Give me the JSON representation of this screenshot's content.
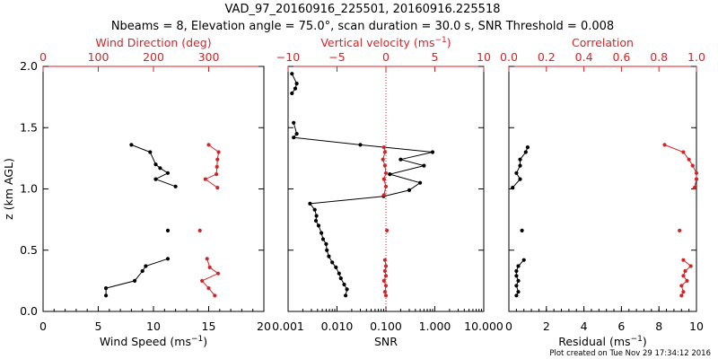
{
  "title_line1": "VAD_97_20160916_225501, 20160916.225518",
  "title_line2": "Nbeams = 8, Elevation angle = 75.0°, scan duration = 30.0 s, SNR Threshold = 0.008",
  "footer": "Plot created on Tue Nov 29 17:34:12 2016",
  "colors": {
    "primary": "#000000",
    "secondary": "#d0262a"
  },
  "y_axis": {
    "label": "z (km AGL)",
    "range": [
      0,
      2.0
    ],
    "ticks": [
      "0.0",
      "0.5",
      "1.0",
      "1.5",
      "2.0"
    ]
  },
  "chart_data": [
    {
      "type": "line",
      "name": "wind",
      "x_bottom": {
        "label": "Wind Speed (ms⁻¹)",
        "range": [
          0,
          20
        ],
        "ticks": [
          "0",
          "5",
          "10",
          "15",
          "20"
        ]
      },
      "x_top": {
        "label": "Wind Direction (deg)",
        "range": [
          0,
          400
        ],
        "ticks": [
          "0",
          "100",
          "200",
          "300"
        ]
      },
      "series": [
        {
          "name": "Wind Speed",
          "axis": "bottom",
          "color": "#000000",
          "segments": [
            [
              [
                8.0,
                1.36
              ],
              [
                9.7,
                1.3
              ],
              [
                10.2,
                1.2
              ],
              [
                10.6,
                1.17
              ],
              [
                11.3,
                1.13
              ],
              [
                10.2,
                1.08
              ],
              [
                12.0,
                1.02
              ]
            ],
            [
              [
                11.3,
                0.66
              ]
            ],
            [
              [
                11.3,
                0.43
              ],
              [
                9.3,
                0.37
              ],
              [
                9.0,
                0.33
              ],
              [
                8.3,
                0.25
              ],
              [
                5.7,
                0.19
              ],
              [
                5.7,
                0.13
              ]
            ]
          ]
        },
        {
          "name": "Wind Direction",
          "axis": "top",
          "color": "#d0262a",
          "segments": [
            [
              [
                300,
                1.36
              ],
              [
                318,
                1.3
              ],
              [
                316,
                1.24
              ],
              [
                315,
                1.18
              ],
              [
                314,
                1.12
              ],
              [
                294,
                1.08
              ],
              [
                316,
                1.01
              ]
            ],
            [
              [
                284,
                0.66
              ]
            ],
            [
              [
                297,
                0.43
              ],
              [
                302,
                0.36
              ],
              [
                317,
                0.31
              ],
              [
                288,
                0.25
              ],
              [
                300,
                0.19
              ],
              [
                311,
                0.13
              ]
            ]
          ]
        }
      ]
    },
    {
      "type": "line",
      "name": "snr",
      "x_bottom": {
        "label": "SNR",
        "scale": "log",
        "range": [
          0.001,
          10
        ],
        "ticks": [
          "0.001",
          "0.010",
          "0.100",
          "1.000",
          "10.000"
        ]
      },
      "x_top": {
        "label": "Vertical velocity (ms⁻¹)",
        "range": [
          -10,
          10
        ],
        "ticks": [
          "−10",
          "−5",
          "0",
          "5",
          "10"
        ]
      },
      "series": [
        {
          "name": "SNR",
          "axis": "bottom",
          "color": "#000000",
          "segments": [
            [
              [
                0.0012,
                1.94
              ],
              [
                0.0015,
                1.86
              ],
              [
                0.0014,
                1.82
              ],
              [
                0.0012,
                1.78
              ]
            ],
            [
              [
                0.0013,
                1.54
              ],
              [
                0.0015,
                1.45
              ],
              [
                0.0013,
                1.42
              ],
              [
                0.03,
                1.36
              ],
              [
                0.9,
                1.3
              ],
              [
                0.2,
                1.24
              ],
              [
                0.6,
                1.19
              ],
              [
                0.12,
                1.12
              ],
              [
                0.5,
                1.05
              ],
              [
                0.3,
                0.99
              ],
              [
                0.09,
                0.94
              ],
              [
                0.0028,
                0.88
              ],
              [
                0.0035,
                0.83
              ],
              [
                0.0038,
                0.78
              ],
              [
                0.0037,
                0.74
              ],
              [
                0.0042,
                0.7
              ],
              [
                0.0048,
                0.64
              ],
              [
                0.0052,
                0.59
              ],
              [
                0.006,
                0.55
              ],
              [
                0.0062,
                0.5
              ],
              [
                0.0068,
                0.45
              ],
              [
                0.008,
                0.4
              ],
              [
                0.0095,
                0.36
              ],
              [
                0.011,
                0.31
              ],
              [
                0.012,
                0.27
              ],
              [
                0.014,
                0.22
              ],
              [
                0.016,
                0.18
              ],
              [
                0.015,
                0.13
              ]
            ]
          ]
        },
        {
          "name": "Vertical velocity",
          "axis": "top",
          "color": "#d0262a",
          "segments": [
            [
              [
                -0.2,
                1.34
              ],
              [
                -0.1,
                1.3
              ],
              [
                -0.3,
                1.24
              ],
              [
                -0.1,
                1.19
              ],
              [
                0,
                1.13
              ],
              [
                -0.2,
                1.08
              ],
              [
                0,
                1.02
              ],
              [
                -0.2,
                0.95
              ]
            ],
            [
              [
                0.1,
                0.66
              ]
            ],
            [
              [
                -0.1,
                0.42
              ],
              [
                0,
                0.37
              ],
              [
                -0.1,
                0.33
              ],
              [
                0,
                0.29
              ],
              [
                -0.2,
                0.25
              ],
              [
                0,
                0.21
              ],
              [
                -0.1,
                0.16
              ],
              [
                0,
                0.13
              ]
            ]
          ]
        }
      ],
      "reference_line": {
        "x": 0.1,
        "style": "dotted"
      }
    },
    {
      "type": "line",
      "name": "residual",
      "x_bottom": {
        "label": "Residual (ms⁻¹)",
        "range": [
          0,
          10
        ],
        "ticks": [
          "0",
          "2",
          "4",
          "6",
          "8",
          "10"
        ]
      },
      "x_top": {
        "label": "Correlation",
        "range": [
          0,
          1.0
        ],
        "ticks": [
          "0.0",
          "0.2",
          "0.4",
          "0.6",
          "0.8",
          "1.0"
        ]
      },
      "series": [
        {
          "name": "Residual",
          "axis": "bottom",
          "color": "#000000",
          "segments": [
            [
              [
                1.0,
                1.34
              ],
              [
                0.9,
                1.3
              ],
              [
                0.6,
                1.24
              ],
              [
                0.6,
                1.19
              ],
              [
                0.4,
                1.13
              ],
              [
                0.6,
                1.08
              ],
              [
                0.2,
                1.01
              ]
            ],
            [
              [
                0.7,
                0.66
              ]
            ],
            [
              [
                0.8,
                0.42
              ],
              [
                0.5,
                0.37
              ],
              [
                0.4,
                0.33
              ],
              [
                0.4,
                0.29
              ],
              [
                0.5,
                0.25
              ],
              [
                0.4,
                0.21
              ],
              [
                0.5,
                0.16
              ],
              [
                0.4,
                0.13
              ]
            ]
          ]
        },
        {
          "name": "Correlation",
          "axis": "top",
          "color": "#d0262a",
          "segments": [
            [
              [
                0.83,
                1.36
              ],
              [
                0.93,
                1.3
              ],
              [
                0.96,
                1.24
              ],
              [
                0.98,
                1.19
              ],
              [
                1.0,
                1.13
              ],
              [
                1.0,
                1.08
              ],
              [
                0.99,
                1.01
              ]
            ],
            [
              [
                0.91,
                0.66
              ]
            ],
            [
              [
                0.93,
                0.42
              ],
              [
                0.97,
                0.37
              ],
              [
                0.94,
                0.33
              ],
              [
                0.93,
                0.29
              ],
              [
                0.95,
                0.25
              ],
              [
                0.92,
                0.21
              ],
              [
                0.93,
                0.16
              ],
              [
                0.92,
                0.13
              ]
            ]
          ]
        }
      ]
    }
  ]
}
